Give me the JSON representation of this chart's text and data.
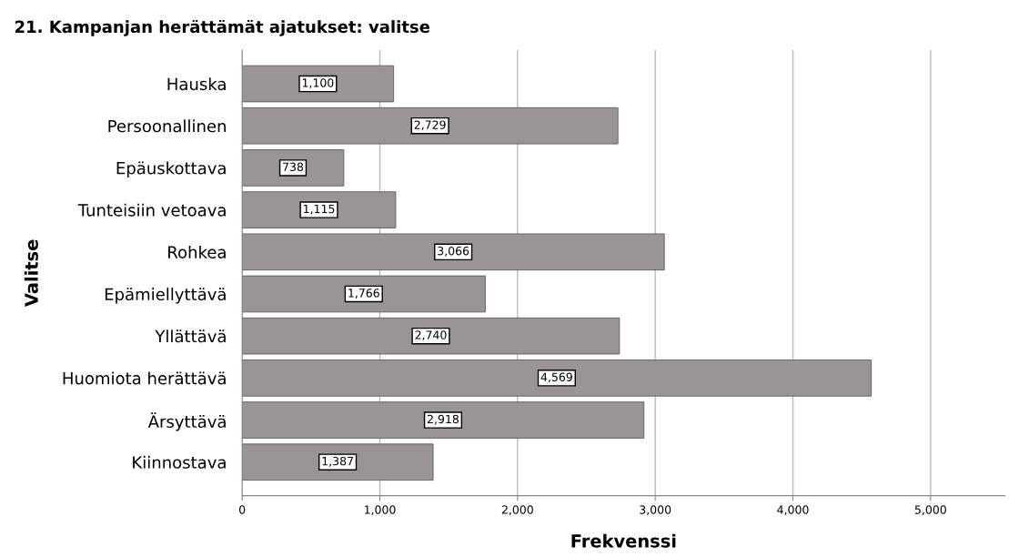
{
  "chart_data": {
    "type": "bar",
    "orientation": "horizontal",
    "title": "21. Kampanjan herättämät ajatukset: valitse",
    "xlabel": "Frekvenssi",
    "ylabel": "Valitse",
    "categories": [
      "Hauska",
      "Persoonallinen",
      "Epäuskottava",
      "Tunteisiin vetoava",
      "Rohkea",
      "Epämiellyttävä",
      "Yllättävä",
      "Huomiota herättävä",
      "Ärsyttävä",
      "Kiinnostava"
    ],
    "values": [
      1100,
      2729,
      738,
      1115,
      3066,
      1766,
      2740,
      4569,
      2918,
      1387
    ],
    "value_labels": [
      "1,100",
      "2,729",
      "738",
      "1,115",
      "3,066",
      "1,766",
      "2,740",
      "4,569",
      "2,918",
      "1,387"
    ],
    "color": "#9a9594",
    "xlim": [
      0,
      5540
    ],
    "xticks": [
      0,
      {
        "value": 1000,
        "label": "1,000"
      },
      {
        "value": 2000,
        "label": "2,000"
      },
      {
        "value": 3000,
        "label": "3,000"
      },
      {
        "value": 4000,
        "label": "4,000"
      },
      {
        "value": 5000,
        "label": "5,000"
      }
    ],
    "grid": "x",
    "legend": false
  }
}
